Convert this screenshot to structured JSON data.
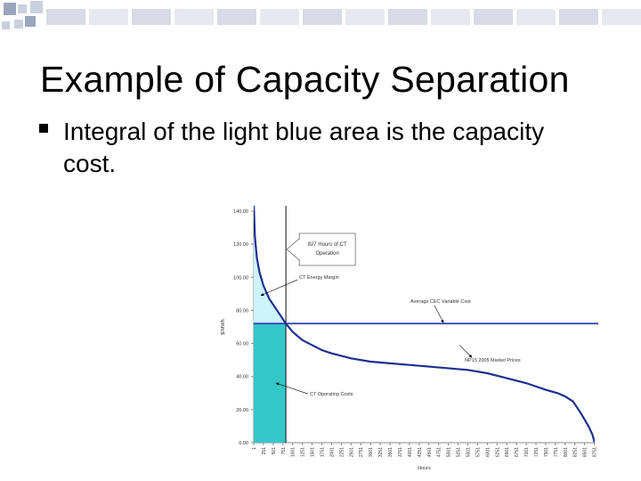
{
  "slide": {
    "title": "Example of Capacity Separation",
    "bullets": [
      {
        "icon": "square-bullet-icon",
        "text": "Integral of the light blue area is the capacity cost."
      }
    ]
  },
  "colors": {
    "curve": "#1f2f8f",
    "average_line": "#2a3fae",
    "energy_margin_fill": "#cdf3fb",
    "operating_cost_fill": "#33c7c9",
    "deco_square_dark": "#9aa6bc",
    "deco_square_light": "#c9d0de"
  },
  "chart_data": {
    "type": "line",
    "ylabel": "$/MWh",
    "xlabel": "Hours",
    "ylim": [
      0,
      140
    ],
    "xlim": [
      1,
      8760
    ],
    "y_ticks": [
      "0.00",
      "20.00",
      "40.00",
      "60.00",
      "80.00",
      "100.00",
      "120.00",
      "140.00"
    ],
    "x_ticks": [
      "1",
      "251",
      "501",
      "751",
      "1001",
      "1251",
      "1501",
      "1751",
      "2001",
      "2251",
      "2501",
      "2751",
      "3001",
      "3251",
      "3501",
      "3751",
      "4001",
      "4251",
      "4501",
      "4751",
      "5001",
      "5251",
      "5501",
      "5751",
      "6001",
      "6251",
      "6501",
      "6751",
      "7001",
      "7251",
      "7501",
      "7751",
      "8001",
      "8251",
      "8501",
      "8751"
    ],
    "series": [
      {
        "name": "NP15 2005 Market Prices",
        "x": [
          1,
          30,
          80,
          150,
          250,
          400,
          600,
          827,
          1001,
          1250,
          1500,
          1750,
          2000,
          2500,
          3000,
          3500,
          4000,
          4500,
          5000,
          5500,
          6000,
          6500,
          7000,
          7500,
          7800,
          8000,
          8200,
          8400,
          8600,
          8700,
          8760
        ],
        "y": [
          145,
          125,
          112,
          103,
          95,
          87,
          80,
          72,
          67,
          62,
          59,
          56,
          54,
          51,
          49,
          48,
          47,
          46,
          45,
          44,
          42,
          39,
          36,
          32,
          30,
          28,
          25,
          18,
          10,
          5,
          0
        ]
      }
    ],
    "average_variable_cost": 72,
    "ct_operation_hours": 827,
    "annotations": [
      {
        "name": "ct-hours-callout",
        "text": [
          "827 Hours of CT",
          "Operation"
        ]
      },
      {
        "name": "ct-energy-margin-label",
        "text": "CT Energy Margin"
      },
      {
        "name": "average-cost-label",
        "text": "Average CEC Variable Cost"
      },
      {
        "name": "market-prices-label",
        "text": "NP15 2005 Market Prices"
      },
      {
        "name": "ct-operating-costs-label",
        "text": "CT Operating Costs"
      }
    ]
  }
}
